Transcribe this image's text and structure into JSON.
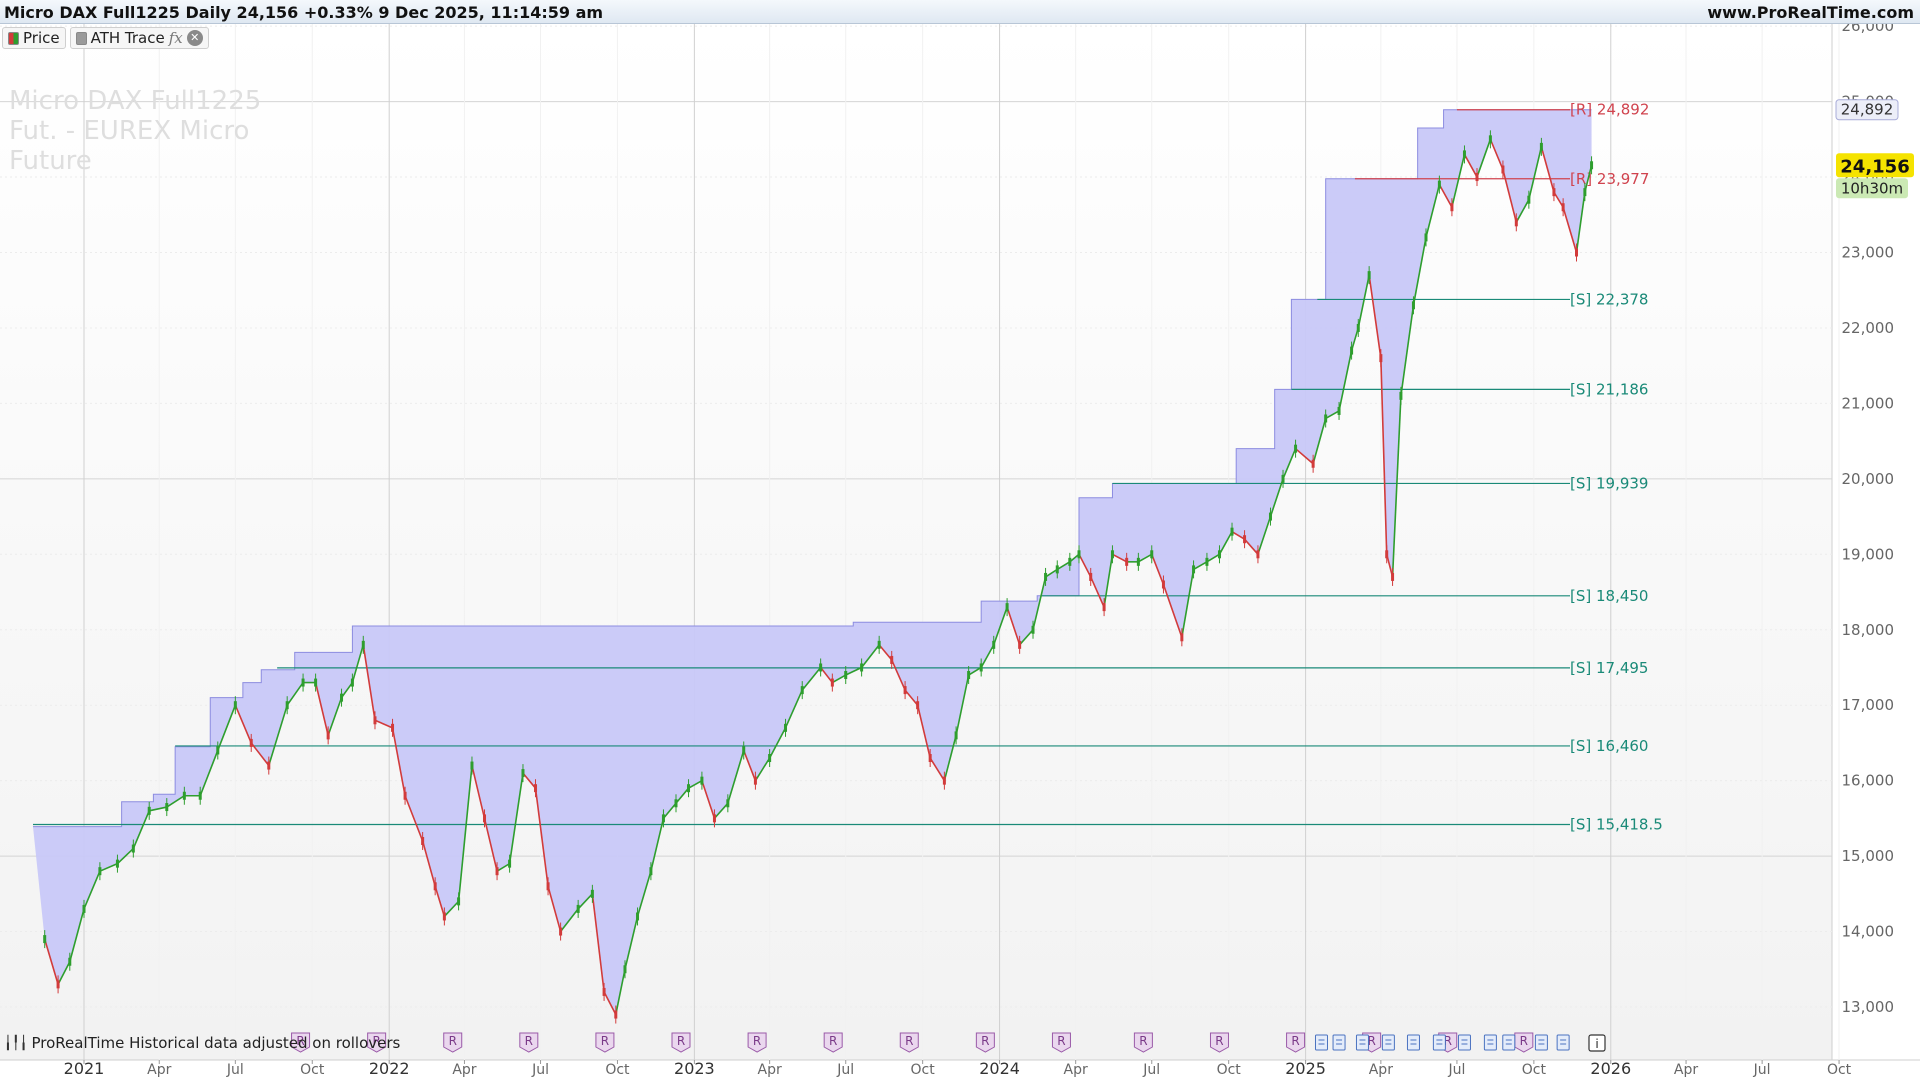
{
  "header": {
    "title": "Micro DAX Full1225 Daily 24,156 +0.33% 9 Dec 2025, 11:14:59 am",
    "site": "www.ProRealTime.com"
  },
  "legend": {
    "price_label": "Price",
    "ath_label": "ATH Trace",
    "fx_symbol": "fx",
    "close_symbol": "✕"
  },
  "watermark": "Micro DAX Full1225 Fut. - EUREX Micro Future",
  "footer_note": "ProRealTime Historical data adjusted on rollovers",
  "colors": {
    "up": "#2e9e2e",
    "down": "#d23b3b",
    "ath_fill": "#c8c8f8",
    "resistance": "#d0434e",
    "support": "#1a8a78",
    "last_price_bg": "#f5e300",
    "timer_bg": "#cbe9b4"
  },
  "chart_data": {
    "type": "line",
    "title": "Micro DAX Full1225 Daily",
    "ylim": [
      12500,
      26000
    ],
    "x_ticks": [
      "2021",
      "Apr",
      "Jul",
      "Oct",
      "2022",
      "Apr",
      "Jul",
      "Oct",
      "2023",
      "Apr",
      "Jul",
      "Oct",
      "2024",
      "Apr",
      "Jul",
      "Oct",
      "2025",
      "Apr",
      "Jul",
      "Oct",
      "2026",
      "Apr",
      "Jul",
      "Oct"
    ],
    "y_ticks": [
      "13,000",
      "14,000",
      "15,000",
      "16,000",
      "17,000",
      "18,000",
      "19,000",
      "20,000",
      "21,000",
      "22,000",
      "23,000",
      "24,000",
      "25,000",
      "26,000"
    ],
    "series": [
      {
        "name": "Price",
        "x": [
          "2020-11-15",
          "2020-12-01",
          "2020-12-15",
          "2021-01-01",
          "2021-01-20",
          "2021-02-10",
          "2021-03-01",
          "2021-03-20",
          "2021-04-10",
          "2021-05-01",
          "2021-05-20",
          "2021-06-10",
          "2021-07-01",
          "2021-07-20",
          "2021-08-10",
          "2021-09-01",
          "2021-09-20",
          "2021-10-05",
          "2021-10-20",
          "2021-11-05",
          "2021-11-18",
          "2021-12-01",
          "2021-12-15",
          "2022-01-05",
          "2022-01-20",
          "2022-02-10",
          "2022-02-25",
          "2022-03-08",
          "2022-03-25",
          "2022-04-10",
          "2022-04-25",
          "2022-05-10",
          "2022-05-25",
          "2022-06-10",
          "2022-06-25",
          "2022-07-10",
          "2022-07-25",
          "2022-08-15",
          "2022-09-01",
          "2022-09-15",
          "2022-09-29",
          "2022-10-10",
          "2022-10-25",
          "2022-11-10",
          "2022-11-25",
          "2022-12-10",
          "2022-12-25",
          "2023-01-10",
          "2023-01-25",
          "2023-02-10",
          "2023-03-01",
          "2023-03-15",
          "2023-04-01",
          "2023-04-20",
          "2023-05-10",
          "2023-06-01",
          "2023-06-15",
          "2023-07-01",
          "2023-07-20",
          "2023-08-10",
          "2023-08-25",
          "2023-09-10",
          "2023-09-25",
          "2023-10-10",
          "2023-10-27",
          "2023-11-10",
          "2023-11-25",
          "2023-12-10",
          "2023-12-25",
          "2024-01-10",
          "2024-01-25",
          "2024-02-10",
          "2024-02-25",
          "2024-03-10",
          "2024-03-25",
          "2024-04-05",
          "2024-04-19",
          "2024-05-05",
          "2024-05-15",
          "2024-06-01",
          "2024-06-15",
          "2024-07-01",
          "2024-07-15",
          "2024-08-06",
          "2024-08-20",
          "2024-09-05",
          "2024-09-20",
          "2024-10-05",
          "2024-10-20",
          "2024-11-05",
          "2024-11-20",
          "2024-12-05",
          "2024-12-20",
          "2025-01-10",
          "2025-01-25",
          "2025-02-10",
          "2025-02-25",
          "2025-03-05",
          "2025-03-18",
          "2025-04-01",
          "2025-04-08",
          "2025-04-15",
          "2025-04-25",
          "2025-05-10",
          "2025-05-25",
          "2025-06-10",
          "2025-06-25",
          "2025-07-10",
          "2025-07-25",
          "2025-08-10",
          "2025-08-25",
          "2025-09-10",
          "2025-09-25",
          "2025-10-10",
          "2025-10-25",
          "2025-11-05",
          "2025-11-21",
          "2025-12-01",
          "2025-12-09"
        ],
        "values": [
          13900,
          13300,
          13600,
          14300,
          14800,
          14900,
          15100,
          15600,
          15650,
          15800,
          15800,
          16400,
          17000,
          16500,
          16200,
          17000,
          17300,
          17300,
          16600,
          17100,
          17300,
          17800,
          16800,
          16700,
          15800,
          15200,
          14600,
          14200,
          14400,
          16200,
          15500,
          14800,
          14900,
          16100,
          15900,
          14600,
          14000,
          14300,
          14500,
          13200,
          12900,
          13500,
          14200,
          14800,
          15500,
          15700,
          15900,
          16000,
          15500,
          15700,
          16400,
          16000,
          16300,
          16700,
          17200,
          17500,
          17300,
          17400,
          17500,
          17800,
          17600,
          17200,
          17000,
          16300,
          16000,
          16600,
          17400,
          17500,
          17800,
          18300,
          17800,
          18000,
          18700,
          18800,
          18900,
          19000,
          18700,
          18300,
          19000,
          18900,
          18900,
          19000,
          18600,
          17900,
          18800,
          18900,
          19000,
          19300,
          19200,
          19000,
          19500,
          20000,
          20400,
          20200,
          20800,
          20900,
          21700,
          22000,
          22700,
          21600,
          19000,
          18700,
          21100,
          22300,
          23200,
          23900,
          23600,
          24300,
          24000,
          24500,
          24100,
          23400,
          23700,
          24400,
          23800,
          23600,
          23000,
          23800,
          24156
        ]
      }
    ],
    "ath_trace": [
      {
        "from": "2020-11-01",
        "to": "2021-02-15",
        "level": 15390
      },
      {
        "from": "2021-02-15",
        "to": "2021-03-25",
        "level": 15720
      },
      {
        "from": "2021-03-25",
        "to": "2021-04-20",
        "level": 15820
      },
      {
        "from": "2021-04-20",
        "to": "2021-06-01",
        "level": 16450
      },
      {
        "from": "2021-06-01",
        "to": "2021-07-10",
        "level": 17100
      },
      {
        "from": "2021-07-10",
        "to": "2021-08-01",
        "level": 17300
      },
      {
        "from": "2021-08-01",
        "to": "2021-09-10",
        "level": 17470
      },
      {
        "from": "2021-09-10",
        "to": "2021-11-18",
        "level": 17700
      },
      {
        "from": "2021-11-18",
        "to": "2023-07-10",
        "level": 18050
      },
      {
        "from": "2023-07-10",
        "to": "2023-12-10",
        "level": 18100
      },
      {
        "from": "2023-12-10",
        "to": "2024-02-15",
        "level": 18380
      },
      {
        "from": "2024-02-15",
        "to": "2024-04-05",
        "level": 18450
      },
      {
        "from": "2024-04-05",
        "to": "2024-05-15",
        "level": 19750
      },
      {
        "from": "2024-05-15",
        "to": "2024-10-10",
        "level": 19939
      },
      {
        "from": "2024-10-10",
        "to": "2024-11-25",
        "level": 20400
      },
      {
        "from": "2024-11-25",
        "to": "2024-12-15",
        "level": 21186
      },
      {
        "from": "2024-12-15",
        "to": "2025-01-25",
        "level": 22378
      },
      {
        "from": "2025-01-25",
        "to": "2025-05-15",
        "level": 23977
      },
      {
        "from": "2025-05-15",
        "to": "2025-06-15",
        "level": 24650
      },
      {
        "from": "2025-06-15",
        "to": "2025-12-09",
        "level": 24892
      }
    ],
    "levels": [
      {
        "label": "[R] 24,892",
        "value": 24892,
        "kind": "resistance",
        "from": "2025-07-01"
      },
      {
        "label": "[R] 23,977",
        "value": 23977,
        "kind": "resistance",
        "from": "2025-03-01"
      },
      {
        "label": "[S] 22,378",
        "value": 22378,
        "kind": "support",
        "from": "2025-01-15"
      },
      {
        "label": "[S] 21,186",
        "value": 21186,
        "kind": "support",
        "from": "2024-12-15"
      },
      {
        "label": "[S] 19,939",
        "value": 19939,
        "kind": "support",
        "from": "2024-05-15"
      },
      {
        "label": "[S] 18,450",
        "value": 18450,
        "kind": "support",
        "from": "2024-02-20"
      },
      {
        "label": "[S] 17,495",
        "value": 17495,
        "kind": "support",
        "from": "2021-08-20"
      },
      {
        "label": "[S] 16,460",
        "value": 16460,
        "kind": "support",
        "from": "2021-04-20"
      },
      {
        "label": "[S] 15,418.5",
        "value": 15418.5,
        "kind": "support",
        "from": "2020-11-01"
      }
    ],
    "price_tags": [
      {
        "label": "24,892",
        "value": 24892,
        "style": "ath"
      },
      {
        "label": "24,156",
        "value": 24156,
        "style": "last",
        "sub": "10h30m"
      }
    ],
    "rollover_markers": [
      "2021-09-17",
      "2021-12-17",
      "2022-03-18",
      "2022-06-17",
      "2022-09-16",
      "2022-12-16",
      "2023-03-17",
      "2023-06-16",
      "2023-09-15",
      "2023-12-15",
      "2024-03-15",
      "2024-06-21",
      "2024-09-20",
      "2024-12-20",
      "2025-03-21",
      "2025-06-20",
      "2025-09-19"
    ],
    "marker_label": "R",
    "report_markers": [
      "2025-01-20",
      "2025-02-10",
      "2025-03-10",
      "2025-04-10",
      "2025-05-10",
      "2025-06-10",
      "2025-07-10",
      "2025-08-10",
      "2025-09-01",
      "2025-10-10",
      "2025-11-05"
    ],
    "info_marker": "i",
    "grid": true
  }
}
